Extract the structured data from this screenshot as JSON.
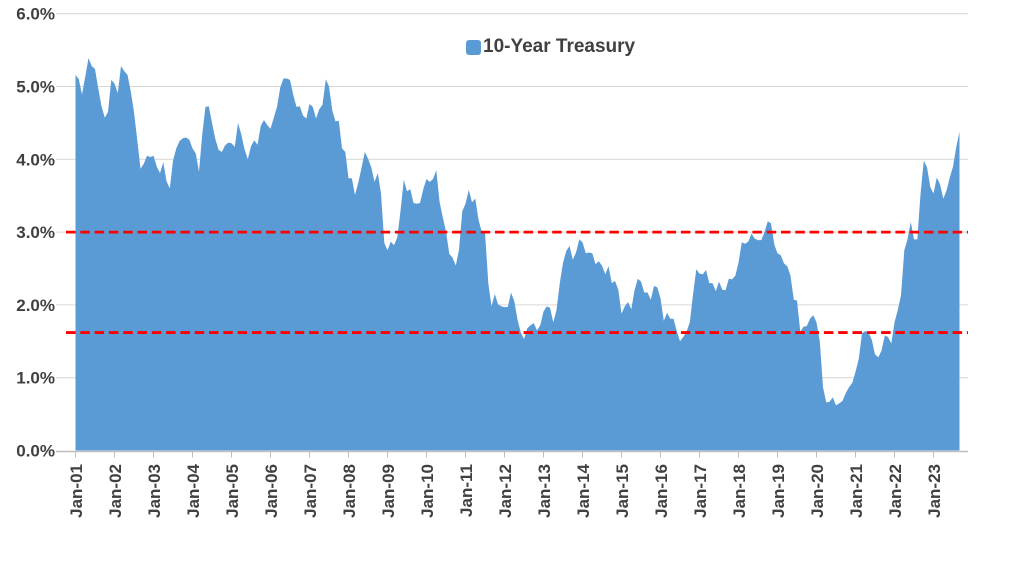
{
  "legend": {
    "label": "10-Year Treasury"
  },
  "chart_data": {
    "type": "area",
    "title": "",
    "xlabel": "",
    "ylabel": "",
    "ylim": [
      0,
      6
    ],
    "y_unit": "percent",
    "grid": "horizontal",
    "legend_position": "top-center",
    "y_tick_labels": [
      "0.0%",
      "1.0%",
      "2.0%",
      "3.0%",
      "4.0%",
      "5.0%",
      "6.0%"
    ],
    "x_tick_labels": [
      "Jan-01",
      "Jan-02",
      "Jan-03",
      "Jan-04",
      "Jan-05",
      "Jan-06",
      "Jan-07",
      "Jan-08",
      "Jan-09",
      "Jan-10",
      "Jan-11",
      "Jan-12",
      "Jan-13",
      "Jan-14",
      "Jan-15",
      "Jan-16",
      "Jan-17",
      "Jan-18",
      "Jan-19",
      "Jan-20",
      "Jan-21",
      "Jan-22",
      "Jan-23"
    ],
    "series": [
      {
        "name": "10-Year Treasury",
        "start": "Jan-2001",
        "end": "Sep-2023",
        "frequency": "monthly",
        "values": [
          5.16,
          5.1,
          4.89,
          5.14,
          5.39,
          5.28,
          5.24,
          4.97,
          4.73,
          4.57,
          4.65,
          5.09,
          5.04,
          4.91,
          5.28,
          5.21,
          5.16,
          4.93,
          4.65,
          4.26,
          3.87,
          3.94,
          4.05,
          4.03,
          4.05,
          3.9,
          3.81,
          3.96,
          3.7,
          3.6,
          3.98,
          4.15,
          4.25,
          4.29,
          4.3,
          4.27,
          4.15,
          4.08,
          3.83,
          4.35,
          4.72,
          4.73,
          4.5,
          4.28,
          4.13,
          4.1,
          4.19,
          4.23,
          4.22,
          4.17,
          4.5,
          4.34,
          4.14,
          4.0,
          4.18,
          4.26,
          4.2,
          4.46,
          4.54,
          4.47,
          4.42,
          4.57,
          4.72,
          4.99,
          5.11,
          5.11,
          5.09,
          4.88,
          4.72,
          4.73,
          4.6,
          4.56,
          4.76,
          4.72,
          4.56,
          4.69,
          4.75,
          5.1,
          5.0,
          4.67,
          4.52,
          4.53,
          4.15,
          4.1,
          3.74,
          3.74,
          3.51,
          3.68,
          3.88,
          4.1,
          4.01,
          3.89,
          3.69,
          3.81,
          3.53,
          2.85,
          2.75,
          2.87,
          2.82,
          2.93,
          3.29,
          3.72,
          3.56,
          3.59,
          3.4,
          3.39,
          3.4,
          3.59,
          3.73,
          3.69,
          3.73,
          3.85,
          3.42,
          3.2,
          3.01,
          2.7,
          2.65,
          2.54,
          2.76,
          3.29,
          3.39,
          3.58,
          3.41,
          3.46,
          3.17,
          3.0,
          3.0,
          2.3,
          1.98,
          2.15,
          2.01,
          1.98,
          1.97,
          1.97,
          2.17,
          2.05,
          1.8,
          1.62,
          1.53,
          1.68,
          1.72,
          1.75,
          1.65,
          1.72,
          1.91,
          1.98,
          1.96,
          1.76,
          1.93,
          2.3,
          2.58,
          2.74,
          2.81,
          2.62,
          2.72,
          2.9,
          2.86,
          2.71,
          2.72,
          2.71,
          2.56,
          2.6,
          2.54,
          2.42,
          2.53,
          2.3,
          2.33,
          2.21,
          1.88,
          1.98,
          2.04,
          1.94,
          2.2,
          2.36,
          2.32,
          2.17,
          2.17,
          2.07,
          2.26,
          2.24,
          2.09,
          1.78,
          1.89,
          1.81,
          1.81,
          1.64,
          1.5,
          1.56,
          1.63,
          1.76,
          2.14,
          2.49,
          2.43,
          2.42,
          2.48,
          2.3,
          2.3,
          2.19,
          2.32,
          2.21,
          2.2,
          2.36,
          2.35,
          2.4,
          2.58,
          2.86,
          2.84,
          2.87,
          2.98,
          2.91,
          2.89,
          2.89,
          3.0,
          3.15,
          3.12,
          2.83,
          2.71,
          2.68,
          2.57,
          2.53,
          2.4,
          2.07,
          2.06,
          1.63,
          1.7,
          1.71,
          1.81,
          1.86,
          1.76,
          1.5,
          0.87,
          0.66,
          0.67,
          0.73,
          0.62,
          0.65,
          0.68,
          0.79,
          0.87,
          0.93,
          1.08,
          1.26,
          1.61,
          1.64,
          1.62,
          1.52,
          1.32,
          1.28,
          1.37,
          1.58,
          1.56,
          1.47,
          1.76,
          1.93,
          2.13,
          2.75,
          2.9,
          3.14,
          2.9,
          2.9,
          3.52,
          3.98,
          3.89,
          3.62,
          3.53,
          3.75,
          3.66,
          3.46,
          3.57,
          3.75,
          3.9,
          4.17,
          4.38
        ]
      }
    ],
    "reference_lines": [
      {
        "value": 3.0,
        "style": "dashed",
        "color": "#FF0000"
      },
      {
        "value": 1.62,
        "style": "dashed",
        "color": "#FF0000"
      }
    ],
    "colors": {
      "area": "#5B9BD5",
      "reference": "#FF0000",
      "grid": "#D6D6D6",
      "axis": "#BFBFBF",
      "text": "#404040",
      "background": "#FFFFFF"
    }
  }
}
